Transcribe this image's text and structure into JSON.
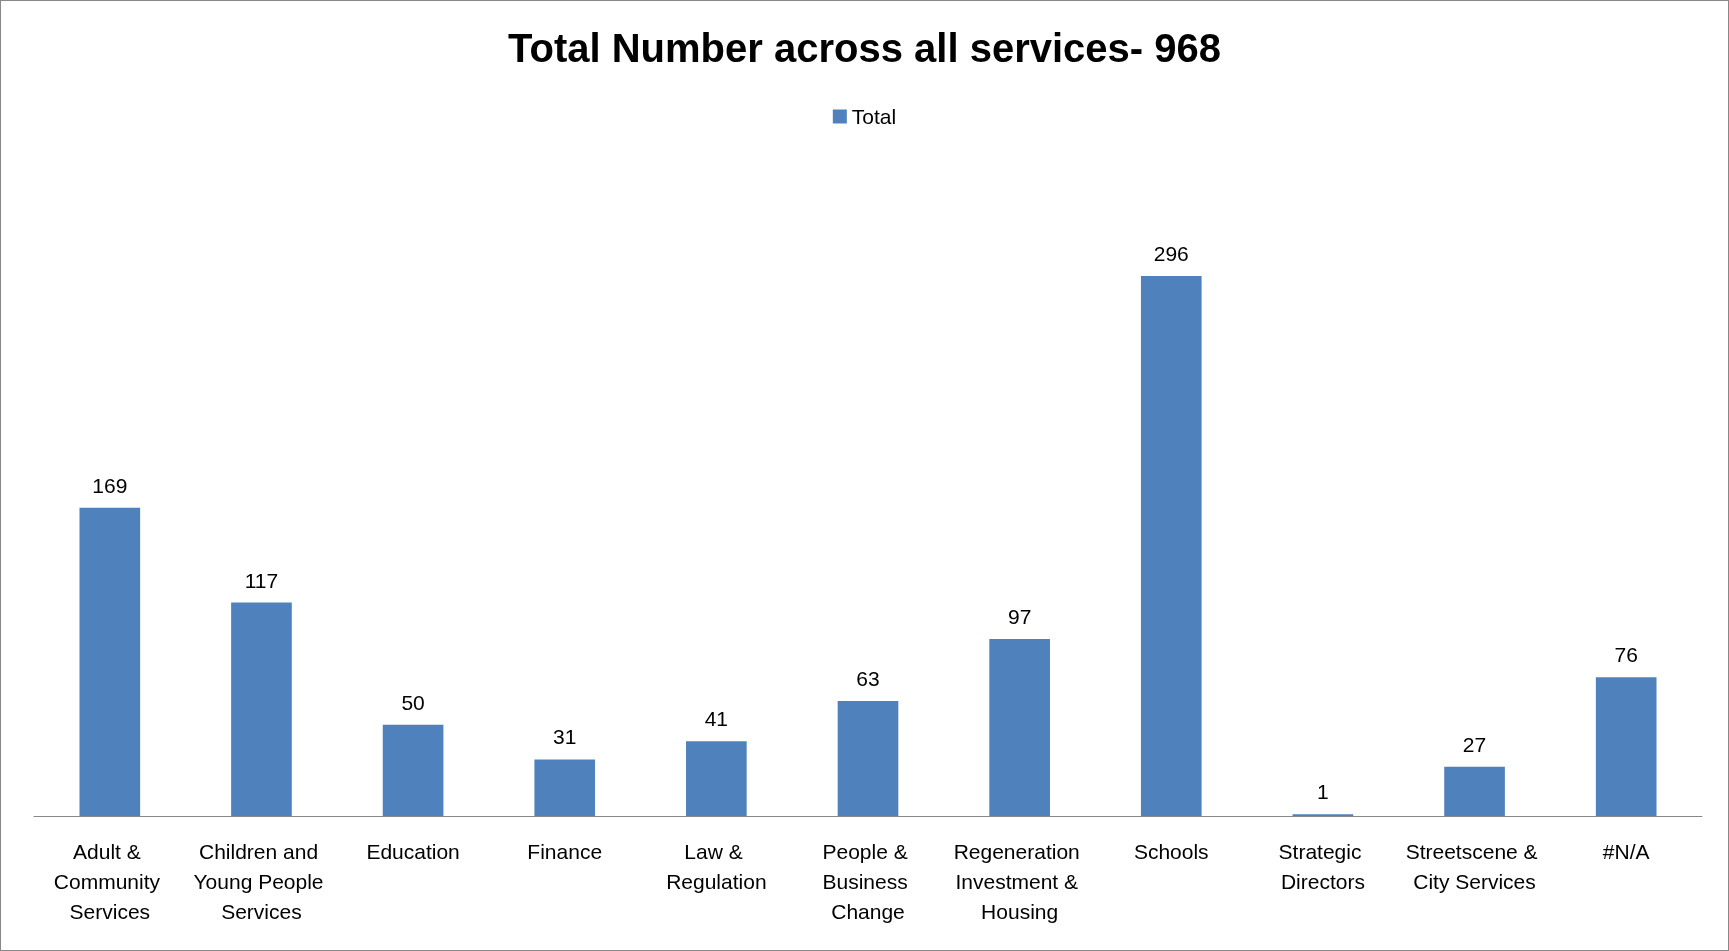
{
  "chart_data": {
    "type": "bar",
    "title": "Total Number across all services- 968",
    "categories": [
      "Adult & Community Services",
      "Children and Young People Services",
      "Education",
      "Finance",
      "Law & Regulation",
      "People & Business Change",
      "Regeneration Investment & Housing",
      "Schools",
      "Strategic Directors",
      "Streetscene & City Services",
      "#N/A"
    ],
    "series": [
      {
        "name": "Total",
        "color": "#4f81bd",
        "values": [
          169,
          117,
          50,
          31,
          41,
          63,
          97,
          296,
          1,
          27,
          76
        ]
      }
    ],
    "data_labels": true,
    "legend": "top",
    "tick_labels": "x"
  }
}
